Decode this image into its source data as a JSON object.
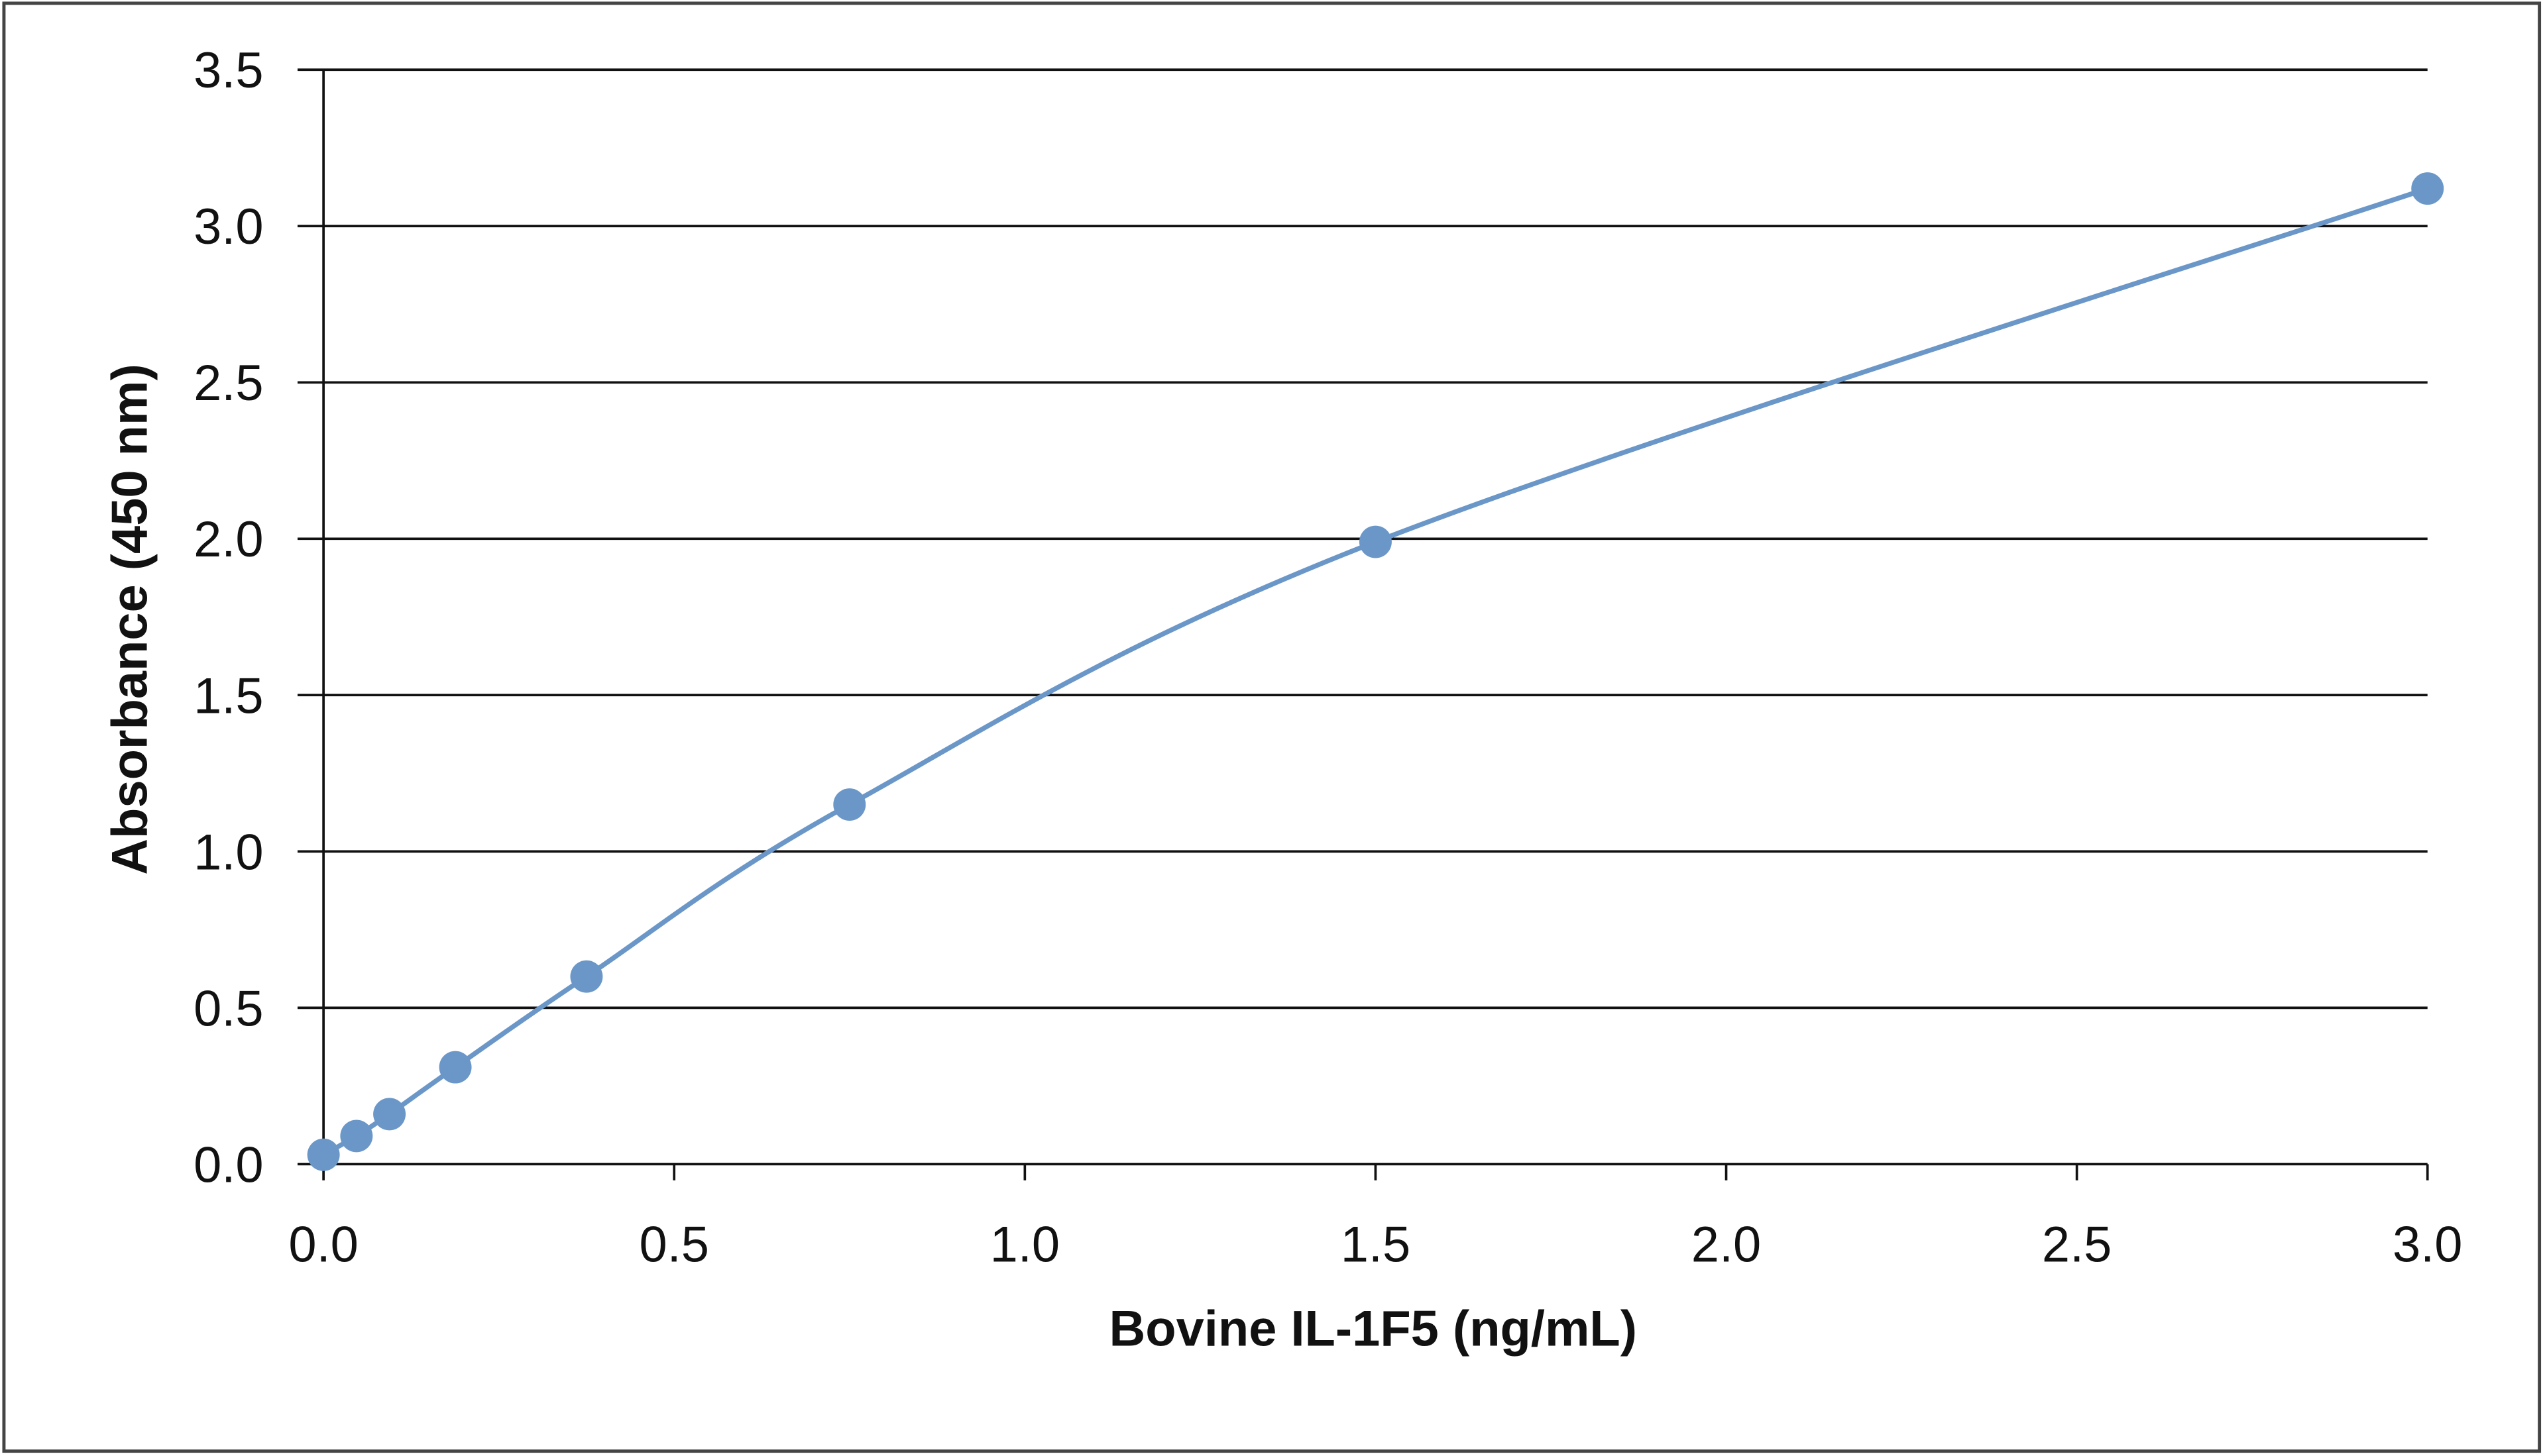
{
  "chart_data": {
    "type": "scatter",
    "x_label": "Bovine IL-1F5 (ng/mL)",
    "y_label": "Absorbance  (450 nm)",
    "xlim": [
      0,
      3
    ],
    "ylim": [
      0,
      3.5
    ],
    "xticks": [
      {
        "value": 0,
        "label": "0.0"
      },
      {
        "value": 0.5,
        "label": "0.5"
      },
      {
        "value": 1,
        "label": "1.0"
      },
      {
        "value": 1.5,
        "label": "1.5"
      },
      {
        "value": 2,
        "label": "2.0"
      },
      {
        "value": 2.5,
        "label": "2.5"
      },
      {
        "value": 3,
        "label": "3.0"
      }
    ],
    "yticks": [
      {
        "value": 0,
        "label": "0.0"
      },
      {
        "value": 0.5,
        "label": "0.5"
      },
      {
        "value": 1,
        "label": "1.0"
      },
      {
        "value": 1.5,
        "label": "1.5"
      },
      {
        "value": 2,
        "label": "2.0"
      },
      {
        "value": 2.5,
        "label": "2.5"
      },
      {
        "value": 3,
        "label": "3.0"
      },
      {
        "value": 3.5,
        "label": "3.5"
      }
    ],
    "grid": true,
    "smooth": true,
    "color": "#6a97c8",
    "x": [
      0,
      0.047,
      0.094,
      0.188,
      0.375,
      0.75,
      1.5,
      3.0
    ],
    "values": [
      0.03,
      0.09,
      0.16,
      0.31,
      0.6,
      1.15,
      1.99,
      3.12
    ]
  }
}
